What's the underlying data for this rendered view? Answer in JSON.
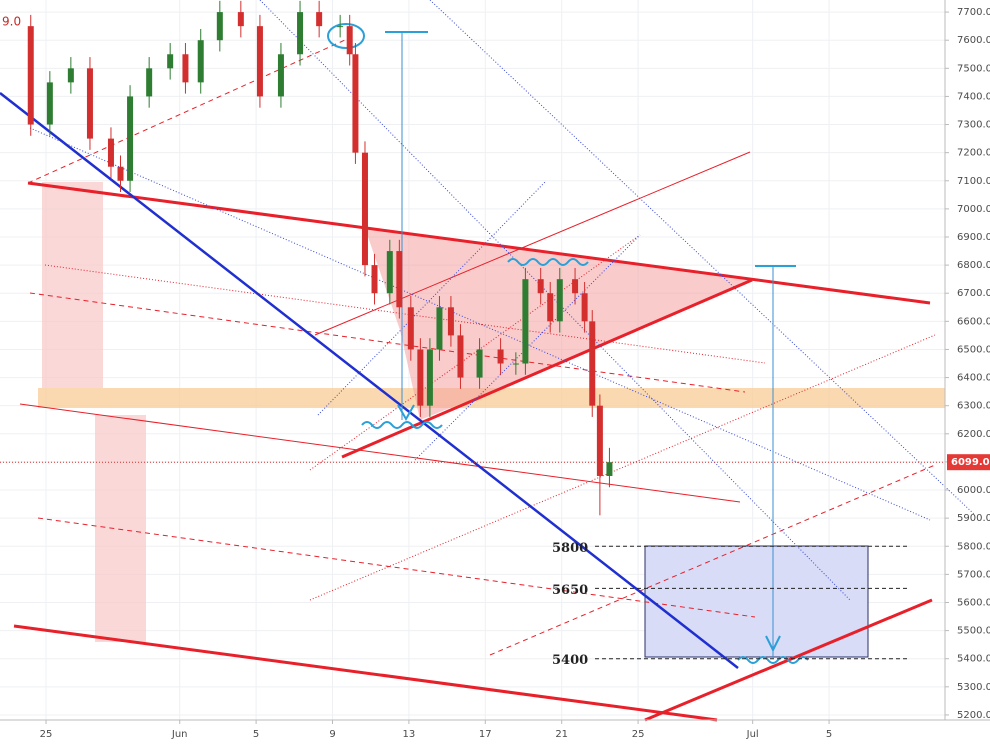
{
  "chart_data": {
    "type": "candlestick",
    "corner_text": "9.0",
    "x": [
      -0.8,
      0.2,
      1.3,
      2.3,
      3.4,
      3.9,
      4.4,
      5.4,
      6.5,
      7.3,
      8.1,
      9.1,
      10.2,
      11.2,
      12.3,
      13.3,
      14.3,
      15.4,
      15.9,
      16.2,
      16.7,
      17.2,
      18.0,
      18.5,
      19.1,
      19.6,
      20.1,
      20.6,
      21.2,
      21.7,
      22.7,
      23.8,
      24.6,
      25.1,
      25.9,
      26.4,
      26.9,
      27.7,
      28.2,
      28.6,
      29.0,
      29.5
    ],
    "open": [
      7650,
      7300,
      7450,
      7500,
      7250,
      7150,
      7100,
      7400,
      7500,
      7550,
      7450,
      7600,
      7700,
      7650,
      7400,
      7550,
      7700,
      7650,
      7650,
      7550,
      7200,
      6800,
      6700,
      6850,
      6650,
      6500,
      6300,
      6500,
      6650,
      6550,
      6400,
      6500,
      6450,
      6450,
      6750,
      6700,
      6600,
      6750,
      6700,
      6600,
      6300,
      6050
    ],
    "high": [
      7690,
      7490,
      7540,
      7540,
      7290,
      7190,
      7440,
      7540,
      7590,
      7590,
      7640,
      7740,
      7740,
      7690,
      7590,
      7740,
      7740,
      7690,
      7690,
      7590,
      7240,
      6840,
      6890,
      6890,
      6690,
      6540,
      6540,
      6690,
      6690,
      6590,
      6540,
      6540,
      6490,
      6790,
      6790,
      6740,
      6790,
      6790,
      6740,
      6640,
      6340,
      6150
    ],
    "low": [
      7260,
      7260,
      7410,
      7210,
      7110,
      7060,
      7060,
      7360,
      7460,
      7410,
      7410,
      7560,
      7610,
      7360,
      7360,
      7510,
      7610,
      7610,
      7510,
      7160,
      6760,
      6660,
      6660,
      6610,
      6460,
      6260,
      6260,
      6460,
      6510,
      6360,
      6360,
      6410,
      6410,
      6410,
      6660,
      6560,
      6560,
      6660,
      6560,
      6260,
      5910,
      6010
    ],
    "close": [
      7300,
      7450,
      7500,
      7250,
      7150,
      7100,
      7400,
      7500,
      7550,
      7450,
      7600,
      7700,
      7650,
      7400,
      7550,
      7700,
      7650,
      7650,
      7550,
      7200,
      6800,
      6700,
      6850,
      6650,
      6500,
      6300,
      6500,
      6650,
      6550,
      6400,
      6500,
      6450,
      6450,
      6750,
      6700,
      6600,
      6750,
      6700,
      6600,
      6300,
      6050,
      6099
    ],
    "up_color": "#2e7d32",
    "down_color": "#d32f2f",
    "xlim": [
      -2.41,
      47.07
    ],
    "ylim": [
      5182,
      7743
    ],
    "xticks": [
      {
        "value": 0,
        "label": "25"
      },
      {
        "value": 7,
        "label": "Jun"
      },
      {
        "value": 11,
        "label": "5"
      },
      {
        "value": 15,
        "label": "9"
      },
      {
        "value": 19,
        "label": "13"
      },
      {
        "value": 23,
        "label": "17"
      },
      {
        "value": 27,
        "label": "21"
      },
      {
        "value": 31,
        "label": "25"
      },
      {
        "value": 37,
        "label": "Jul"
      },
      {
        "value": 41,
        "label": "5"
      }
    ],
    "yticks": [
      {
        "value": 5200,
        "label": "5200.0"
      },
      {
        "value": 5300,
        "label": "5300.0"
      },
      {
        "value": 5400,
        "label": "5400.0"
      },
      {
        "value": 5500,
        "label": "5500.0"
      },
      {
        "value": 5600,
        "label": "5600.0"
      },
      {
        "value": 5700,
        "label": "5700.0"
      },
      {
        "value": 5800,
        "label": "5800.0"
      },
      {
        "value": 5900,
        "label": "5900.0"
      },
      {
        "value": 6000,
        "label": "6000.0"
      },
      {
        "value": 6100,
        "label": "6100.0"
      },
      {
        "value": 6200,
        "label": "6200.0"
      },
      {
        "value": 6300,
        "label": "6300.0"
      },
      {
        "value": 6400,
        "label": "6400.0"
      },
      {
        "value": 6500,
        "label": "6500.0"
      },
      {
        "value": 6600,
        "label": "6600.0"
      },
      {
        "value": 6700,
        "label": "6700.0"
      },
      {
        "value": 6800,
        "label": "6800.0"
      },
      {
        "value": 6900,
        "label": "6900.0"
      },
      {
        "value": 7000,
        "label": "7000.0"
      },
      {
        "value": 7100,
        "label": "7100.0"
      },
      {
        "value": 7200,
        "label": "7200.0"
      },
      {
        "value": 7300,
        "label": "7300.0"
      },
      {
        "value": 7400,
        "label": "7400.0"
      },
      {
        "value": 7500,
        "label": "7500.0"
      },
      {
        "value": 7600,
        "label": "7600.0"
      },
      {
        "value": 7700,
        "label": "7700.0"
      }
    ],
    "grid": true,
    "last_price": {
      "value": 6099,
      "label": "6099.0"
    },
    "levels": [
      5800,
      5650,
      5400
    ]
  }
}
